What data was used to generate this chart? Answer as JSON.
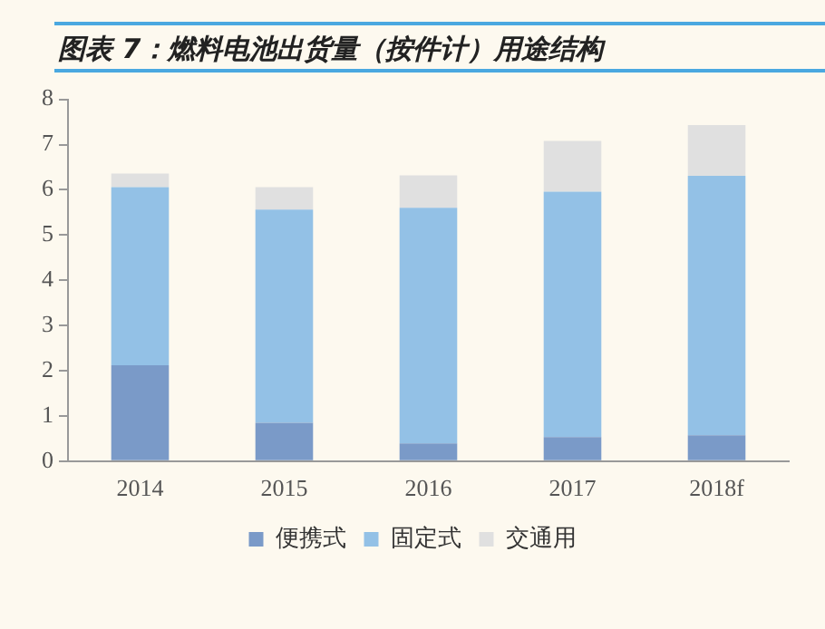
{
  "chart_data": {
    "type": "bar",
    "title": "图表 7：燃料电池出货量（按件计）用途结构",
    "stacked": true,
    "categories": [
      "2014",
      "2015",
      "2016",
      "2017",
      "2018f"
    ],
    "series": [
      {
        "name": "便携式",
        "color": "#7a9ac8",
        "values": [
          2.12,
          0.85,
          0.39,
          0.53,
          0.57
        ]
      },
      {
        "name": "固定式",
        "color": "#93c1e6",
        "values": [
          3.94,
          4.71,
          5.21,
          5.43,
          5.74
        ]
      },
      {
        "name": "交通用",
        "color": "#e0e0e0",
        "values": [
          0.3,
          0.5,
          0.72,
          1.12,
          1.12
        ]
      }
    ],
    "ylim": [
      0,
      8
    ],
    "yticks": [
      0,
      1,
      2,
      3,
      4,
      5,
      6,
      7,
      8
    ],
    "grid": false,
    "legend": "bottom"
  }
}
